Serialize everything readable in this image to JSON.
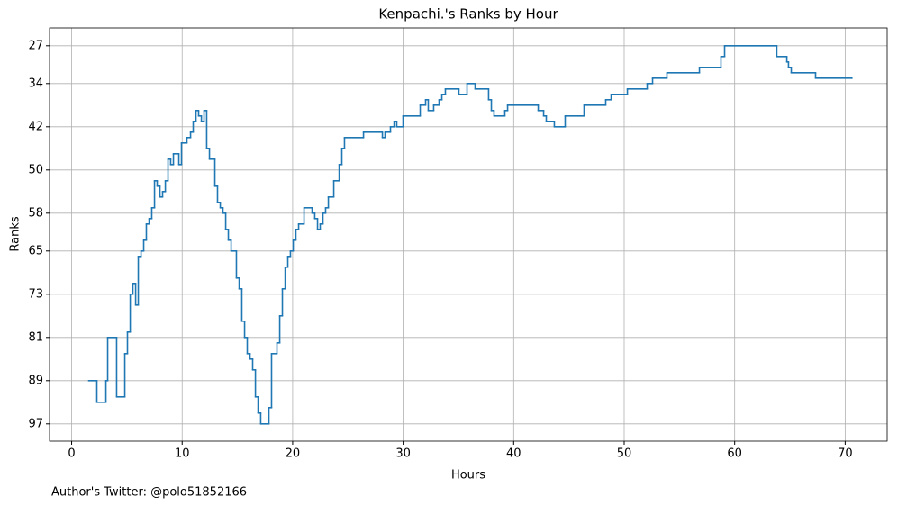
{
  "chart_data": {
    "type": "step",
    "title": "Kenpachi.'s Ranks by Hour",
    "xlabel": "Hours",
    "ylabel": "Ranks",
    "footnote": "Author's Twitter: @polo51852166",
    "color": "#1f77b4",
    "grid": true,
    "y_inverted": true,
    "xlim": [
      -2,
      73.8
    ],
    "xticks": [
      0,
      10,
      20,
      30,
      40,
      50,
      60,
      70
    ],
    "ylim": [
      100.2,
      23.7
    ],
    "yticks": [
      27,
      34,
      42,
      50,
      58,
      65,
      73,
      81,
      89,
      97
    ],
    "x": [
      1.55,
      2.28,
      3.1,
      3.26,
      4.07,
      4.81,
      5.05,
      5.3,
      5.54,
      5.79,
      6.03,
      6.28,
      6.52,
      6.76,
      7.01,
      7.25,
      7.5,
      7.74,
      7.99,
      8.23,
      8.48,
      8.72,
      8.96,
      9.21,
      9.7,
      9.94,
      10.43,
      10.76,
      11.0,
      11.25,
      11.49,
      11.74,
      11.98,
      12.22,
      12.47,
      12.96,
      13.2,
      13.45,
      13.69,
      13.94,
      14.18,
      14.43,
      14.91,
      15.16,
      15.4,
      15.65,
      15.89,
      16.14,
      16.38,
      16.63,
      16.87,
      17.11,
      17.85,
      18.09,
      18.58,
      18.83,
      19.07,
      19.32,
      19.56,
      19.8,
      20.05,
      20.29,
      20.54,
      21.03,
      21.76,
      22.0,
      22.25,
      22.49,
      22.74,
      22.98,
      23.23,
      23.72,
      24.21,
      24.45,
      24.69,
      26.41,
      28.12,
      28.36,
      28.85,
      29.18,
      29.42,
      29.99,
      31.54,
      32.03,
      32.27,
      32.76,
      33.25,
      33.5,
      33.82,
      35.04,
      35.78,
      36.51,
      37.73,
      37.98,
      38.22,
      39.2,
      39.45,
      42.22,
      42.71,
      42.95,
      43.68,
      44.66,
      46.37,
      48.33,
      48.82,
      50.29,
      52.08,
      52.57,
      53.87,
      56.81,
      58.76,
      59.09,
      63.81,
      64.72,
      64.87,
      65.12,
      67.32,
      70.6
    ],
    "values": [
      89,
      93,
      89,
      81,
      92,
      84,
      80,
      73,
      71,
      75,
      66,
      65,
      63,
      60,
      59,
      57,
      52,
      53,
      55,
      54,
      52,
      48,
      49,
      47,
      49,
      45,
      44,
      43,
      41,
      39,
      40,
      41,
      39,
      46,
      48,
      53,
      56,
      57,
      58,
      61,
      63,
      65,
      70,
      72,
      78,
      81,
      84,
      85,
      87,
      92,
      95,
      97,
      94,
      84,
      82,
      77,
      72,
      68,
      66,
      65,
      63,
      61,
      60,
      57,
      58,
      59,
      61,
      60,
      58,
      57,
      55,
      52,
      49,
      46,
      44,
      43,
      44,
      43,
      42,
      41,
      42,
      40,
      38,
      37,
      39,
      38,
      37,
      36,
      35,
      36,
      34,
      35,
      37,
      39,
      40,
      39,
      38,
      39,
      40,
      41,
      42,
      40,
      38,
      37,
      36,
      35,
      34,
      33,
      32,
      31,
      29,
      27,
      29,
      30,
      31,
      32,
      33,
      33
    ]
  }
}
